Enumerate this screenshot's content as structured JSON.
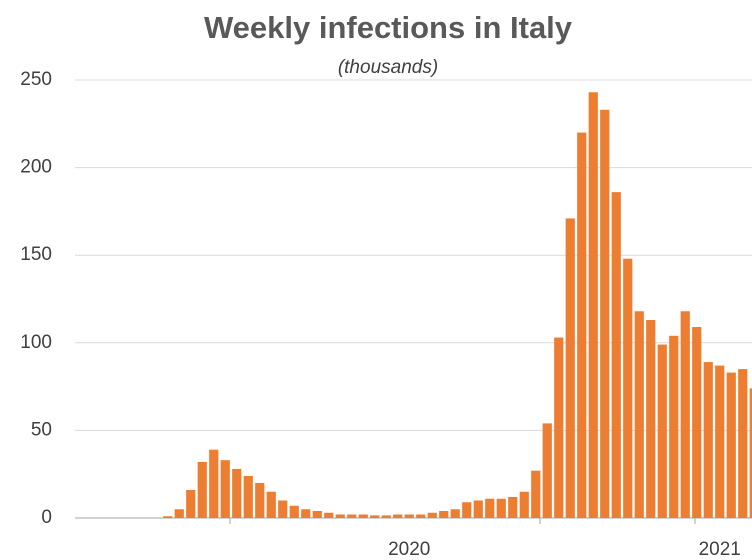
{
  "chart_data": {
    "type": "bar",
    "title": "Weekly infections in Italy",
    "subtitle": "(thousands)",
    "categories": [
      null,
      null,
      null,
      null,
      null,
      null,
      null,
      null,
      null,
      null,
      null,
      null,
      null,
      null,
      null,
      null,
      null,
      null,
      null,
      null,
      null,
      null,
      null,
      null,
      null,
      null,
      null,
      null,
      null,
      "2020",
      null,
      null,
      null,
      null,
      null,
      null,
      null,
      null,
      null,
      null,
      null,
      null,
      null,
      null,
      null,
      null,
      null,
      null,
      null,
      null,
      null,
      null,
      null,
      null,
      null,
      null,
      "2021",
      null,
      null,
      null
    ],
    "values": [
      0,
      0,
      0,
      0,
      0,
      0,
      0,
      0,
      1,
      5,
      16,
      32,
      39,
      33,
      28,
      24,
      20,
      15,
      10,
      7,
      5,
      4,
      3,
      2,
      2,
      2,
      1.5,
      1.5,
      2,
      2,
      2,
      3,
      4,
      5,
      9,
      10,
      11,
      11,
      12,
      15,
      27,
      54,
      103,
      171,
      220,
      243,
      233,
      186,
      148,
      118,
      113,
      99,
      104,
      118,
      109,
      89,
      87,
      83,
      85,
      74
    ],
    "color": "#ed7d31",
    "ylim": [
      0,
      250
    ],
    "yticks": [
      0,
      50,
      100,
      150,
      200,
      250
    ],
    "grid": true
  }
}
